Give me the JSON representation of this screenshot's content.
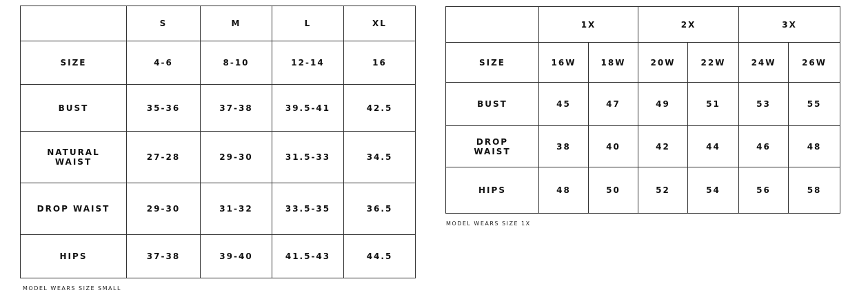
{
  "standard": {
    "header": [
      "",
      "S",
      "M",
      "L",
      "XL"
    ],
    "rows": [
      {
        "label": "SIZE",
        "values": [
          "4-6",
          "8-10",
          "12-14",
          "16"
        ]
      },
      {
        "label": "BUST",
        "values": [
          "35-36",
          "37-38",
          "39.5-41",
          "42.5"
        ]
      },
      {
        "label": "NATURAL WAIST",
        "values": [
          "27-28",
          "29-30",
          "31.5-33",
          "34.5"
        ]
      },
      {
        "label": "DROP WAIST",
        "values": [
          "29-30",
          "31-32",
          "33.5-35",
          "36.5"
        ]
      },
      {
        "label": "HIPS",
        "values": [
          "37-38",
          "39-40",
          "41.5-43",
          "44.5"
        ]
      }
    ],
    "note": "MODEL WEARS SIZE SMALL"
  },
  "plus": {
    "header": [
      "",
      "1X",
      "2X",
      "3X"
    ],
    "rows": [
      {
        "label": "SIZE",
        "values": [
          "16W",
          "18W",
          "20W",
          "22W",
          "24W",
          "26W"
        ]
      },
      {
        "label": "BUST",
        "values": [
          "45",
          "47",
          "49",
          "51",
          "53",
          "55"
        ]
      },
      {
        "label": "DROP WAIST",
        "values": [
          "38",
          "40",
          "42",
          "44",
          "46",
          "48"
        ]
      },
      {
        "label": "HIPS",
        "values": [
          "48",
          "50",
          "52",
          "54",
          "56",
          "58"
        ]
      }
    ],
    "note": "MODEL WEARS SIZE 1X"
  }
}
